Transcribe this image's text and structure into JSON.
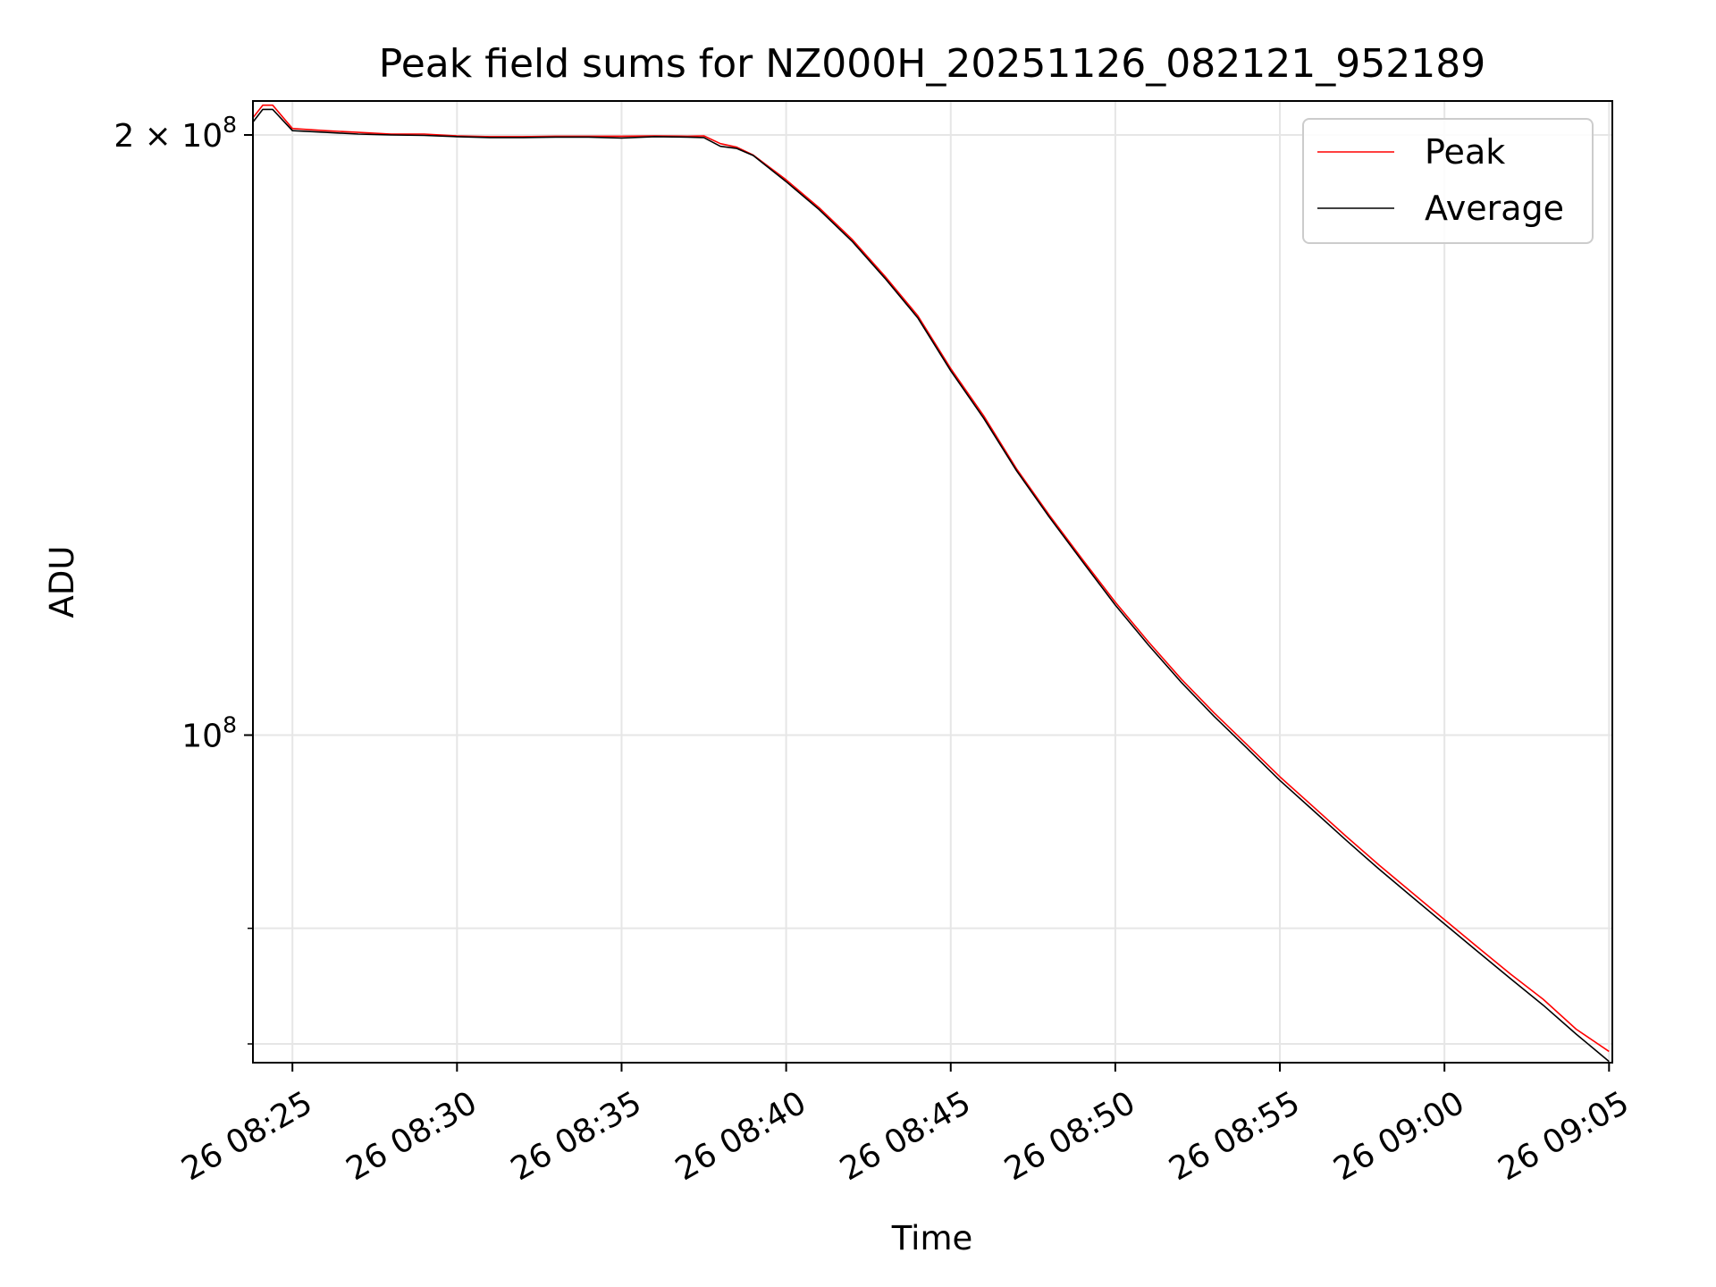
{
  "chart_data": {
    "type": "line",
    "title": "Peak field sums for NZ000H_20251126_082121_952189",
    "xlabel": "Time",
    "ylabel": "ADU",
    "y_scale": "log",
    "x_tick_labels": [
      "26 08:25",
      "26 08:30",
      "26 08:35",
      "26 08:40",
      "26 08:45",
      "26 08:50",
      "26 08:55",
      "26 09:00",
      "26 09:05"
    ],
    "y_tick_labels": [
      {
        "value": 200000000,
        "base": "2 × 10",
        "exp": "8"
      },
      {
        "value": 100000000,
        "base": "10",
        "exp": "8"
      }
    ],
    "y_minor_ticks": [
      80000000,
      70000000
    ],
    "xlim": [
      "2025-11-26 08:23:48",
      "2025-11-26 09:05:06"
    ],
    "ylim": [
      68500000,
      208000000
    ],
    "grid": true,
    "legend_position": "upper right",
    "colors": {
      "peak": "#ff0000",
      "average": "#000000",
      "grid": "#e6e6e6"
    },
    "series": [
      {
        "name": "Peak",
        "color": "#ff0000",
        "points": [
          [
            "2025-11-26 08:23:48",
            204000000
          ],
          [
            "2025-11-26 08:24:06",
            207000000
          ],
          [
            "2025-11-26 08:24:24",
            207000000
          ],
          [
            "2025-11-26 08:25:00",
            201500000
          ],
          [
            "2025-11-26 08:26:00",
            201000000
          ],
          [
            "2025-11-26 08:27:00",
            200600000
          ],
          [
            "2025-11-26 08:28:00",
            200200000
          ],
          [
            "2025-11-26 08:29:00",
            200200000
          ],
          [
            "2025-11-26 08:30:00",
            199800000
          ],
          [
            "2025-11-26 08:31:00",
            199600000
          ],
          [
            "2025-11-26 08:32:00",
            199600000
          ],
          [
            "2025-11-26 08:33:00",
            199700000
          ],
          [
            "2025-11-26 08:34:00",
            199700000
          ],
          [
            "2025-11-26 08:35:00",
            199700000
          ],
          [
            "2025-11-26 08:36:00",
            199800000
          ],
          [
            "2025-11-26 08:37:00",
            199700000
          ],
          [
            "2025-11-26 08:37:30",
            199800000
          ],
          [
            "2025-11-26 08:38:00",
            198000000
          ],
          [
            "2025-11-26 08:38:30",
            197200000
          ],
          [
            "2025-11-26 08:39:00",
            195400000
          ],
          [
            "2025-11-26 08:40:00",
            189900000
          ],
          [
            "2025-11-26 08:41:00",
            183900000
          ],
          [
            "2025-11-26 08:42:00",
            177300000
          ],
          [
            "2025-11-26 08:43:00",
            169900000
          ],
          [
            "2025-11-26 08:44:00",
            162300000
          ],
          [
            "2025-11-26 08:45:00",
            152700000
          ],
          [
            "2025-11-26 08:46:00",
            144600000
          ],
          [
            "2025-11-26 08:47:00",
            136000000
          ],
          [
            "2025-11-26 08:48:00",
            128900000
          ],
          [
            "2025-11-26 08:49:00",
            122500000
          ],
          [
            "2025-11-26 08:50:00",
            116600000
          ],
          [
            "2025-11-26 08:51:00",
            111400000
          ],
          [
            "2025-11-26 08:52:00",
            106700000
          ],
          [
            "2025-11-26 08:53:00",
            102600000
          ],
          [
            "2025-11-26 08:54:00",
            98900000
          ],
          [
            "2025-11-26 08:55:00",
            95300000
          ],
          [
            "2025-11-26 08:56:00",
            92100000
          ],
          [
            "2025-11-26 08:57:00",
            89000000
          ],
          [
            "2025-11-26 08:58:00",
            86100000
          ],
          [
            "2025-11-26 08:59:00",
            83400000
          ],
          [
            "2025-11-26 09:00:00",
            80800000
          ],
          [
            "2025-11-26 09:01:00",
            78300000
          ],
          [
            "2025-11-26 09:02:00",
            75900000
          ],
          [
            "2025-11-26 09:03:00",
            73700000
          ],
          [
            "2025-11-26 09:04:00",
            71200000
          ],
          [
            "2025-11-26 09:05:00",
            69400000
          ]
        ]
      },
      {
        "name": "Average",
        "color": "#000000",
        "points": [
          [
            "2025-11-26 08:23:48",
            203000000
          ],
          [
            "2025-11-26 08:24:06",
            206000000
          ],
          [
            "2025-11-26 08:24:24",
            206000000
          ],
          [
            "2025-11-26 08:25:00",
            201000000
          ],
          [
            "2025-11-26 08:26:00",
            200600000
          ],
          [
            "2025-11-26 08:27:00",
            200200000
          ],
          [
            "2025-11-26 08:28:00",
            200000000
          ],
          [
            "2025-11-26 08:29:00",
            199900000
          ],
          [
            "2025-11-26 08:30:00",
            199600000
          ],
          [
            "2025-11-26 08:31:00",
            199400000
          ],
          [
            "2025-11-26 08:32:00",
            199400000
          ],
          [
            "2025-11-26 08:33:00",
            199500000
          ],
          [
            "2025-11-26 08:34:00",
            199500000
          ],
          [
            "2025-11-26 08:35:00",
            199300000
          ],
          [
            "2025-11-26 08:36:00",
            199600000
          ],
          [
            "2025-11-26 08:37:00",
            199500000
          ],
          [
            "2025-11-26 08:37:30",
            199400000
          ],
          [
            "2025-11-26 08:38:00",
            197400000
          ],
          [
            "2025-11-26 08:38:30",
            196900000
          ],
          [
            "2025-11-26 08:39:00",
            195300000
          ],
          [
            "2025-11-26 08:40:00",
            189500000
          ],
          [
            "2025-11-26 08:41:00",
            183500000
          ],
          [
            "2025-11-26 08:42:00",
            176900000
          ],
          [
            "2025-11-26 08:43:00",
            169500000
          ],
          [
            "2025-11-26 08:44:00",
            161900000
          ],
          [
            "2025-11-26 08:45:00",
            152300000
          ],
          [
            "2025-11-26 08:46:00",
            144200000
          ],
          [
            "2025-11-26 08:47:00",
            135700000
          ],
          [
            "2025-11-26 08:48:00",
            128600000
          ],
          [
            "2025-11-26 08:49:00",
            122200000
          ],
          [
            "2025-11-26 08:50:00",
            116200000
          ],
          [
            "2025-11-26 08:51:00",
            111000000
          ],
          [
            "2025-11-26 08:52:00",
            106300000
          ],
          [
            "2025-11-26 08:53:00",
            102200000
          ],
          [
            "2025-11-26 08:54:00",
            98500000
          ],
          [
            "2025-11-26 08:55:00",
            94900000
          ],
          [
            "2025-11-26 08:56:00",
            91700000
          ],
          [
            "2025-11-26 08:57:00",
            88600000
          ],
          [
            "2025-11-26 08:58:00",
            85700000
          ],
          [
            "2025-11-26 08:59:00",
            83000000
          ],
          [
            "2025-11-26 09:00:00",
            80400000
          ],
          [
            "2025-11-26 09:01:00",
            77900000
          ],
          [
            "2025-11-26 09:02:00",
            75500000
          ],
          [
            "2025-11-26 09:03:00",
            73200000
          ],
          [
            "2025-11-26 09:04:00",
            70800000
          ],
          [
            "2025-11-26 09:05:00",
            68600000
          ]
        ]
      }
    ]
  }
}
